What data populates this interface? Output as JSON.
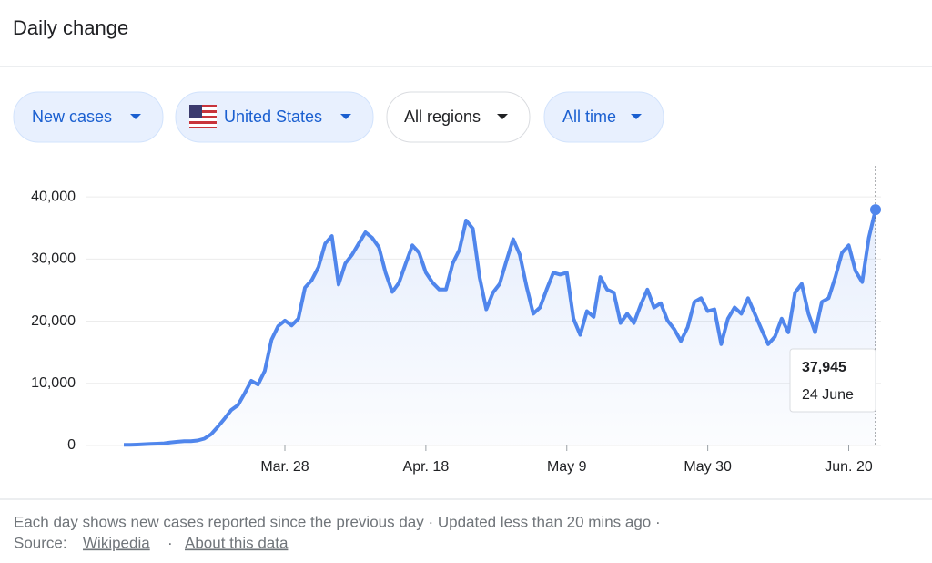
{
  "header": {
    "title": "Daily change"
  },
  "filters": [
    "New cases",
    "United States",
    "All regions",
    "All time"
  ],
  "chart_data": {
    "type": "area",
    "categories": [
      null,
      null,
      null,
      null,
      null,
      null,
      null,
      null,
      null,
      null,
      null,
      null,
      null,
      null,
      null,
      null,
      null,
      null,
      null,
      null,
      null,
      null,
      null,
      null,
      "Mar. 28",
      null,
      null,
      null,
      null,
      null,
      null,
      null,
      null,
      null,
      null,
      null,
      null,
      null,
      null,
      null,
      null,
      null,
      null,
      null,
      null,
      "Apr. 18",
      null,
      null,
      null,
      null,
      null,
      null,
      null,
      null,
      null,
      null,
      null,
      null,
      null,
      null,
      null,
      null,
      null,
      null,
      null,
      null,
      "May 9",
      null,
      null,
      null,
      null,
      null,
      null,
      null,
      null,
      null,
      null,
      null,
      null,
      null,
      null,
      null,
      null,
      null,
      null,
      null,
      null,
      "May 30",
      null,
      null,
      null,
      null,
      null,
      null,
      null,
      null,
      null,
      null,
      null,
      null,
      null,
      null,
      null,
      null,
      null,
      null,
      null,
      null,
      "Jun. 20",
      null,
      null,
      null,
      null
    ],
    "series": [
      {
        "name": "New cases",
        "color": "#5086ec",
        "values": [
          100,
          100,
          150,
          200,
          250,
          300,
          350,
          500,
          600,
          700,
          700,
          800,
          1100,
          1800,
          3000,
          4300,
          5700,
          6500,
          8400,
          10400,
          9800,
          12000,
          17000,
          19200,
          20100,
          19300,
          20400,
          25400,
          26600,
          28700,
          32500,
          33700,
          25900,
          29300,
          30700,
          32500,
          34300,
          33400,
          31900,
          27800,
          24700,
          26200,
          29300,
          32200,
          31000,
          27800,
          26200,
          25100,
          25100,
          29300,
          31500,
          36200,
          34900,
          27100,
          21900,
          24600,
          26000,
          29700,
          33200,
          30700,
          25600,
          21200,
          22200,
          25100,
          27800,
          27500,
          27800,
          20400,
          17800,
          21600,
          20700,
          27100,
          25100,
          24600,
          19700,
          21200,
          19700,
          22600,
          25100,
          22200,
          22900,
          20100,
          18700,
          16800,
          19000,
          23100,
          23700,
          21600,
          21900,
          16300,
          20400,
          22200,
          21200,
          23700,
          21200,
          18700,
          16300,
          17500,
          20400,
          18200,
          24600,
          26000,
          21200,
          18200,
          23100,
          23700,
          27100,
          31000,
          32200,
          28100,
          26300,
          33400,
          37945
        ],
        "value_labels": [
          null,
          null,
          null,
          null,
          null,
          null,
          null,
          null,
          null,
          null,
          null,
          null,
          null,
          null,
          null,
          null,
          null,
          null,
          null,
          null,
          null,
          null,
          null,
          null,
          null,
          null,
          null,
          null,
          null,
          null,
          null,
          null,
          null,
          null,
          null,
          null,
          null,
          null,
          null,
          null,
          null,
          null,
          null,
          null,
          null,
          null,
          null,
          null,
          null,
          null,
          null,
          null,
          null,
          null,
          null,
          null,
          null,
          null,
          null,
          null,
          null,
          null,
          null,
          null,
          null,
          null,
          null,
          null,
          null,
          null,
          null,
          null,
          null,
          null,
          null,
          null,
          null,
          null,
          null,
          null,
          null,
          null,
          null,
          null,
          null,
          null,
          null,
          null,
          null,
          null,
          null,
          null,
          null,
          null,
          null,
          null,
          null,
          null,
          null,
          null,
          null,
          null,
          null,
          null,
          null,
          null,
          null,
          null,
          null,
          null,
          null,
          null,
          "37,945"
        ]
      }
    ],
    "tooltip_date": "24 June",
    "ylim": [
      0,
      45000
    ],
    "yticks": [
      0,
      {
        "value": 10000,
        "label": "10,000"
      },
      {
        "value": 20000,
        "label": "20,000"
      },
      {
        "value": 30000,
        "label": "30,000"
      },
      {
        "value": 40000,
        "label": "40,000"
      }
    ],
    "grid": true
  },
  "footer": {
    "note": "Each day shows new cases reported since the previous day · Updated less than 20 mins ago ·",
    "source_label": "Source:",
    "source_link": "Wikipedia",
    "about_link": "About this data"
  }
}
